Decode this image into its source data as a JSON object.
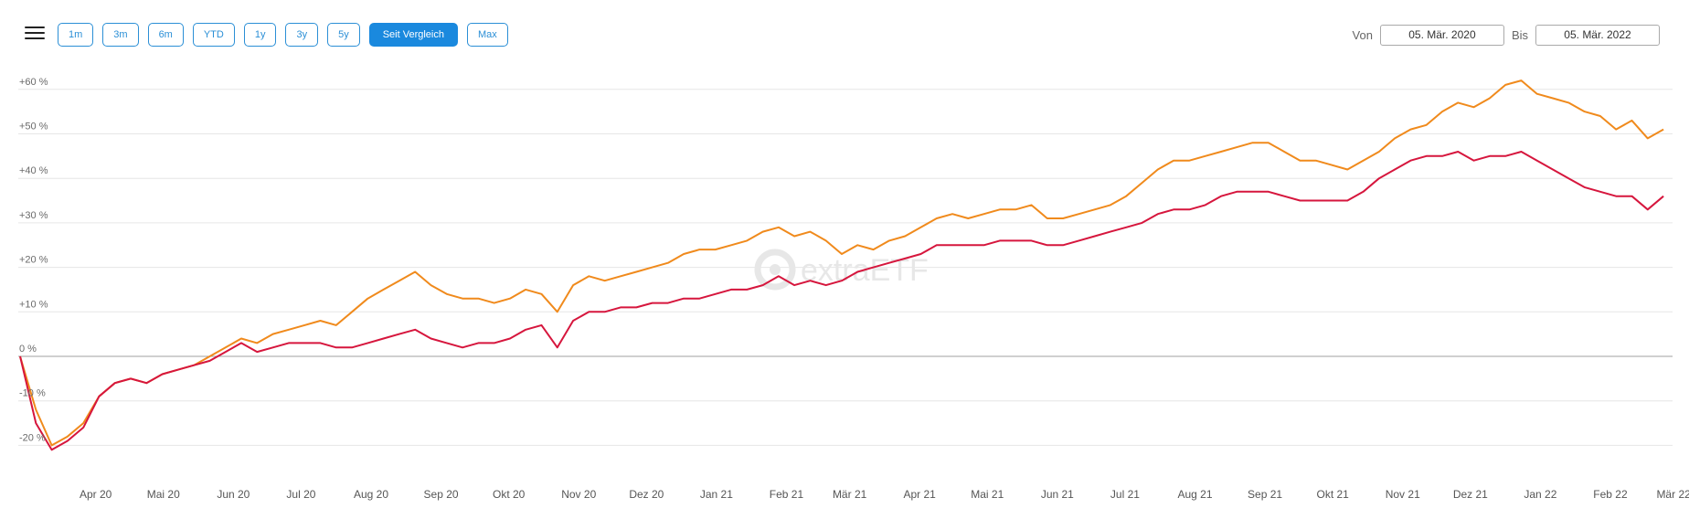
{
  "toolbar": {
    "menu_icon": "hamburger-menu-icon",
    "ranges": [
      "1m",
      "3m",
      "6m",
      "YTD",
      "1y",
      "3y",
      "5y",
      "Seit Vergleich",
      "Max"
    ],
    "active_range": "Seit Vergleich",
    "from_label": "Von",
    "from_value": "05. Mär. 2020",
    "to_label": "Bis",
    "to_value": "05. Mär. 2022"
  },
  "watermark": {
    "text": "extraETF",
    "icon": "extraetf-logo-icon"
  },
  "chart_data": {
    "type": "line",
    "x": [
      "2020-03-05",
      "2020-03-12",
      "2020-03-19",
      "2020-03-26",
      "2020-04-02",
      "2020-04-09",
      "2020-04-16",
      "2020-04-23",
      "2020-04-30",
      "2020-05-07",
      "2020-05-14",
      "2020-05-21",
      "2020-05-28",
      "2020-06-04",
      "2020-06-11",
      "2020-06-18",
      "2020-06-25",
      "2020-07-02",
      "2020-07-09",
      "2020-07-16",
      "2020-07-23",
      "2020-07-30",
      "2020-08-06",
      "2020-08-13",
      "2020-08-20",
      "2020-08-27",
      "2020-09-03",
      "2020-09-10",
      "2020-09-17",
      "2020-09-24",
      "2020-10-01",
      "2020-10-08",
      "2020-10-15",
      "2020-10-22",
      "2020-10-29",
      "2020-11-05",
      "2020-11-12",
      "2020-11-19",
      "2020-11-26",
      "2020-12-03",
      "2020-12-10",
      "2020-12-17",
      "2020-12-24",
      "2020-12-31",
      "2021-01-07",
      "2021-01-14",
      "2021-01-21",
      "2021-01-28",
      "2021-02-04",
      "2021-02-11",
      "2021-02-18",
      "2021-02-25",
      "2021-03-04",
      "2021-03-11",
      "2021-03-18",
      "2021-03-25",
      "2021-04-01",
      "2021-04-08",
      "2021-04-15",
      "2021-04-22",
      "2021-04-29",
      "2021-05-06",
      "2021-05-13",
      "2021-05-20",
      "2021-05-27",
      "2021-06-03",
      "2021-06-10",
      "2021-06-17",
      "2021-06-24",
      "2021-07-01",
      "2021-07-08",
      "2021-07-15",
      "2021-07-22",
      "2021-07-29",
      "2021-08-05",
      "2021-08-12",
      "2021-08-19",
      "2021-08-26",
      "2021-09-02",
      "2021-09-09",
      "2021-09-16",
      "2021-09-23",
      "2021-09-30",
      "2021-10-07",
      "2021-10-14",
      "2021-10-21",
      "2021-10-28",
      "2021-11-04",
      "2021-11-11",
      "2021-11-18",
      "2021-11-25",
      "2021-12-02",
      "2021-12-09",
      "2021-12-16",
      "2021-12-23",
      "2021-12-30",
      "2022-01-06",
      "2022-01-13",
      "2022-01-20",
      "2022-01-27",
      "2022-02-03",
      "2022-02-10",
      "2022-02-17",
      "2022-02-24",
      "2022-03-03"
    ],
    "series": [
      {
        "color": "#f08a1c",
        "values": [
          0,
          -12,
          -20,
          -18,
          -15,
          -9,
          -6,
          -5,
          -6,
          -4,
          -3,
          -2,
          0,
          2,
          4,
          3,
          5,
          6,
          7,
          8,
          7,
          10,
          13,
          15,
          17,
          19,
          16,
          14,
          13,
          13,
          12,
          13,
          15,
          14,
          10,
          16,
          18,
          17,
          18,
          19,
          20,
          21,
          23,
          24,
          24,
          25,
          26,
          28,
          29,
          27,
          28,
          26,
          23,
          25,
          24,
          26,
          27,
          29,
          31,
          32,
          31,
          32,
          33,
          33,
          34,
          31,
          31,
          32,
          33,
          34,
          36,
          39,
          42,
          44,
          44,
          45,
          46,
          47,
          48,
          48,
          46,
          44,
          44,
          43,
          42,
          44,
          46,
          49,
          51,
          52,
          55,
          57,
          56,
          58,
          61,
          62,
          59,
          58,
          57,
          55,
          54,
          51,
          53,
          49,
          51
        ]
      },
      {
        "color": "#d6163d",
        "values": [
          0,
          -15,
          -21,
          -19,
          -16,
          -9,
          -6,
          -5,
          -6,
          -4,
          -3,
          -2,
          -1,
          1,
          3,
          1,
          2,
          3,
          3,
          3,
          2,
          2,
          3,
          4,
          5,
          6,
          4,
          3,
          2,
          3,
          3,
          4,
          6,
          7,
          2,
          8,
          10,
          10,
          11,
          11,
          12,
          12,
          13,
          13,
          14,
          15,
          15,
          16,
          18,
          16,
          17,
          16,
          17,
          19,
          20,
          21,
          22,
          23,
          25,
          25,
          25,
          25,
          26,
          26,
          26,
          25,
          25,
          26,
          27,
          28,
          29,
          30,
          32,
          33,
          33,
          34,
          36,
          37,
          37,
          37,
          36,
          35,
          35,
          35,
          35,
          37,
          40,
          42,
          44,
          45,
          45,
          46,
          44,
          45,
          45,
          46,
          44,
          42,
          40,
          38,
          37,
          36,
          36,
          33,
          36
        ]
      }
    ],
    "ylim": [
      -25,
      65
    ],
    "yticks": [
      60,
      50,
      40,
      30,
      20,
      10,
      0,
      -10,
      -20
    ],
    "ytick_labels": [
      "+60 %",
      "+50 %",
      "+40 %",
      "+30 %",
      "+20 %",
      "+10 %",
      "0 %",
      "-10 %",
      "-20 %"
    ],
    "xticks": [
      "2020-04-01",
      "2020-05-01",
      "2020-06-01",
      "2020-07-01",
      "2020-08-01",
      "2020-09-01",
      "2020-10-01",
      "2020-11-01",
      "2020-12-01",
      "2021-01-01",
      "2021-02-01",
      "2021-03-01",
      "2021-04-01",
      "2021-05-01",
      "2021-06-01",
      "2021-07-01",
      "2021-08-01",
      "2021-09-01",
      "2021-10-01",
      "2021-11-01",
      "2021-12-01",
      "2022-01-01",
      "2022-02-01",
      "2022-03-01"
    ],
    "xtick_labels": [
      "Apr 20",
      "Mai 20",
      "Jun 20",
      "Jul 20",
      "Aug 20",
      "Sep 20",
      "Okt 20",
      "Nov 20",
      "Dez 20",
      "Jan 21",
      "Feb 21",
      "Mär 21",
      "Apr 21",
      "Mai 21",
      "Jun 21",
      "Jul 21",
      "Aug 21",
      "Sep 21",
      "Okt 21",
      "Nov 21",
      "Dez 21",
      "Jan 22",
      "Feb 22",
      "Mär 22"
    ],
    "xlim": [
      "2020-03-05",
      "2022-03-05"
    ],
    "grid": true,
    "legend": "none"
  }
}
